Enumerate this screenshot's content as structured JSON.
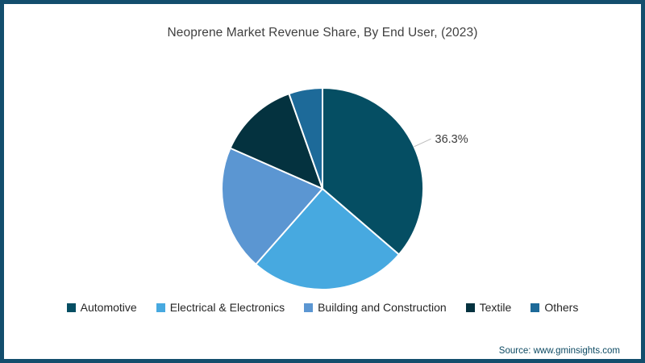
{
  "source_text": "Source: www.gminsights.com",
  "colors": {
    "frame_border": "#134e6d",
    "background": "#ffffff",
    "title_text": "#404040",
    "legend_text": "#262626",
    "annotation_text": "#3d3d3d",
    "leader_line": "#bcbcbc",
    "slice_separator": "#ffffff",
    "source_text": "#0d4a63"
  },
  "chart_data": {
    "type": "pie",
    "title": "Neoprene Market Revenue Share, By End User, (2023)",
    "categories": [
      "Automotive",
      "Electrical & Electronics",
      "Building and Construction",
      "Textile",
      "Others"
    ],
    "values": [
      36.3,
      25.2,
      20.1,
      13.0,
      5.4
    ],
    "slice_colors": [
      "#054e63",
      "#47a9e0",
      "#5b96d2",
      "#04323f",
      "#1d6a99"
    ],
    "unit": "%",
    "start_angle_deg": 0,
    "direction": "clockwise",
    "data_labels": [
      {
        "category": "Automotive",
        "label": "36.3%"
      }
    ],
    "legend_position": "bottom"
  }
}
